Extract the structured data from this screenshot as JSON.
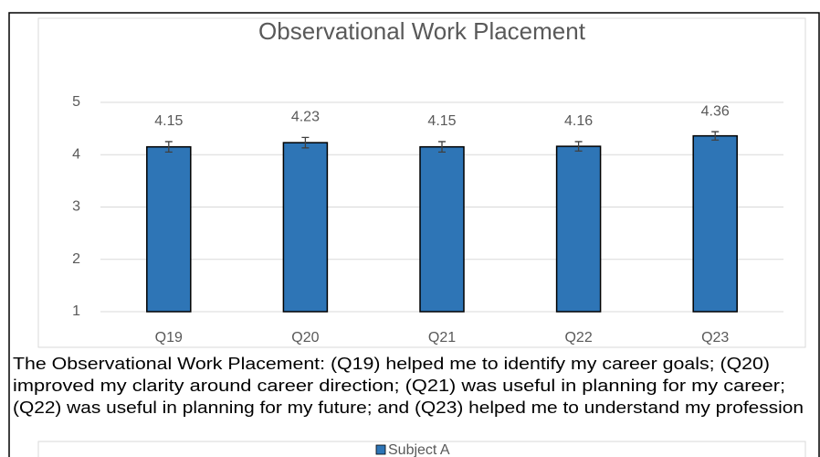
{
  "chart_data": [
    {
      "type": "bar",
      "title": "Observational Work Placement",
      "categories": [
        "Q19",
        "Q20",
        "Q21",
        "Q22",
        "Q23"
      ],
      "values": [
        4.15,
        4.23,
        4.15,
        4.16,
        4.36
      ],
      "errors": [
        0.1,
        0.1,
        0.1,
        0.09,
        0.08
      ],
      "color": "#2e75b6",
      "ylim": [
        1,
        5
      ],
      "yticks": [
        1,
        2,
        3,
        4,
        5
      ],
      "grid": true
    },
    {
      "type": "bar",
      "series": [
        {
          "name": "Subject A",
          "color": "#2e75b6",
          "values": []
        }
      ]
    }
  ],
  "caption": {
    "lines": [
      "The Observational Work Placement: (Q19) helped me to identify my career goals; (Q20)",
      "improved my clarity around career direction; (Q21) was useful in planning for my career;",
      "(Q22) was useful in planning for my future; and (Q23) helped me to understand my profession"
    ]
  }
}
